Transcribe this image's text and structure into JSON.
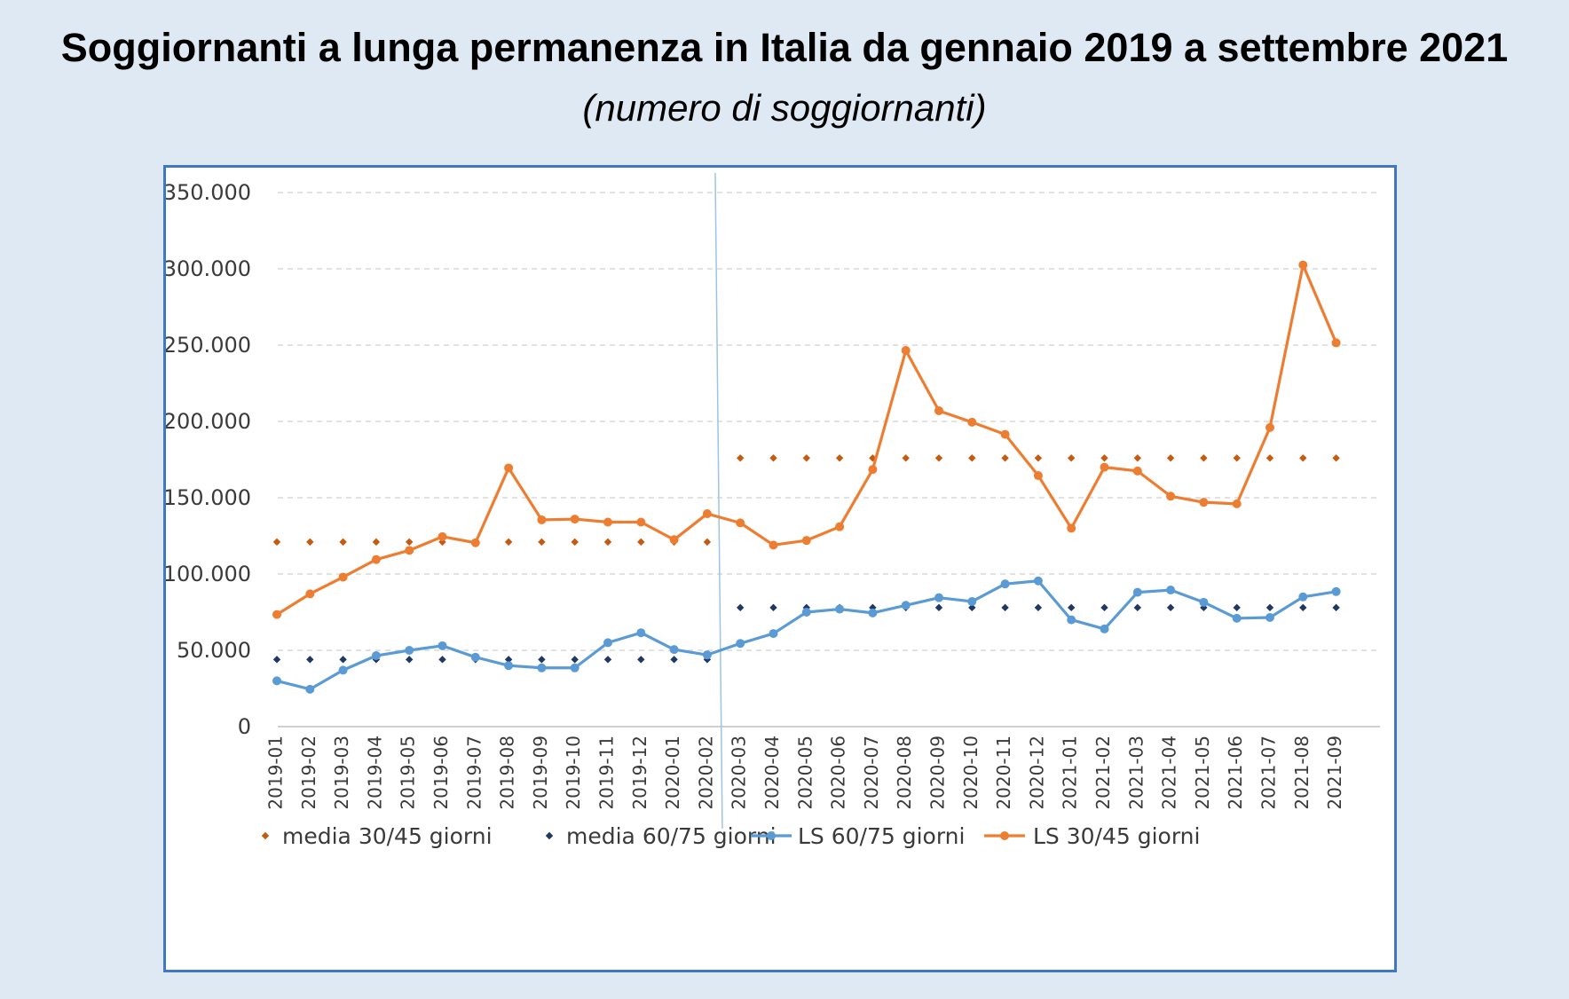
{
  "title": "Soggiornanti a lunga permanenza in Italia da gennaio 2019 a settembre 2021",
  "subtitle": "(numero di soggiornanti)",
  "colors": {
    "orange": "#ed7d31",
    "blue": "#5b9bd5",
    "media_orange": "#c55a11",
    "media_blue": "#1f3864",
    "grid": "#d9d9d9",
    "frame": "#3f77c5",
    "background": "#dfe9f3"
  },
  "chart_data": {
    "type": "line",
    "categories": [
      "2019-01",
      "2019-02",
      "2019-03",
      "2019-04",
      "2019-05",
      "2019-06",
      "2019-07",
      "2019-08",
      "2019-09",
      "2019-10",
      "2019-11",
      "2019-12",
      "2020-01",
      "2020-02",
      "2020-03",
      "2020-04",
      "2020-05",
      "2020-06",
      "2020-07",
      "2020-08",
      "2020-09",
      "2020-10",
      "2020-11",
      "2020-12",
      "2021-01",
      "2021-02",
      "2021-03",
      "2021-04",
      "2021-05",
      "2021-06",
      "2021-07",
      "2021-08",
      "2021-09"
    ],
    "ylim": [
      0,
      350000
    ],
    "yticks": [
      0,
      50000,
      100000,
      150000,
      200000,
      250000,
      300000,
      350000
    ],
    "ytick_labels": [
      "0",
      "50.000",
      "100.000",
      "150.000",
      "200.000",
      "250.000",
      "300.000",
      "350.000"
    ],
    "grid": true,
    "grid_style": "dashed horizontal",
    "legend_position": "bottom",
    "vertical_marker_between": [
      "2020-02",
      "2020-03"
    ],
    "series": [
      {
        "name": "media 30/45 giorni",
        "style": "markers",
        "color": "#c55a11",
        "values": [
          121000,
          121000,
          121000,
          121000,
          121000,
          121000,
          121000,
          121000,
          121000,
          121000,
          121000,
          121000,
          121000,
          121000,
          176000,
          176000,
          176000,
          176000,
          176000,
          176000,
          176000,
          176000,
          176000,
          176000,
          176000,
          176000,
          176000,
          176000,
          176000,
          176000,
          176000,
          176000,
          176000
        ]
      },
      {
        "name": "media 60/75 giorni",
        "style": "markers",
        "color": "#1f3864",
        "values": [
          44000,
          44000,
          44000,
          44000,
          44000,
          44000,
          44000,
          44000,
          44000,
          44000,
          44000,
          44000,
          44000,
          44000,
          78000,
          78000,
          78000,
          78000,
          78000,
          78000,
          78000,
          78000,
          78000,
          78000,
          78000,
          78000,
          78000,
          78000,
          78000,
          78000,
          78000,
          78000,
          78000
        ]
      },
      {
        "name": "LS 60/75 giorni",
        "style": "line",
        "color": "#5b9bd5",
        "values": [
          30000,
          24500,
          37000,
          46500,
          50000,
          53000,
          45500,
          40000,
          38500,
          38500,
          55000,
          61500,
          50500,
          47000,
          54500,
          61000,
          75000,
          77000,
          74500,
          79500,
          84500,
          82000,
          93500,
          95500,
          70000,
          64000,
          88000,
          89500,
          81500,
          71000,
          71500,
          85000,
          88500
        ]
      },
      {
        "name": "LS 30/45 giorni",
        "style": "line",
        "color": "#ed7d31",
        "values": [
          73500,
          87000,
          98000,
          109500,
          115500,
          124500,
          120500,
          169500,
          135500,
          136000,
          134000,
          134000,
          122500,
          139500,
          133500,
          119000,
          122000,
          131000,
          168500,
          246500,
          207000,
          199500,
          191500,
          164500,
          130000,
          170000,
          167500,
          151000,
          147000,
          146000,
          196000,
          302500,
          251500
        ]
      }
    ]
  }
}
